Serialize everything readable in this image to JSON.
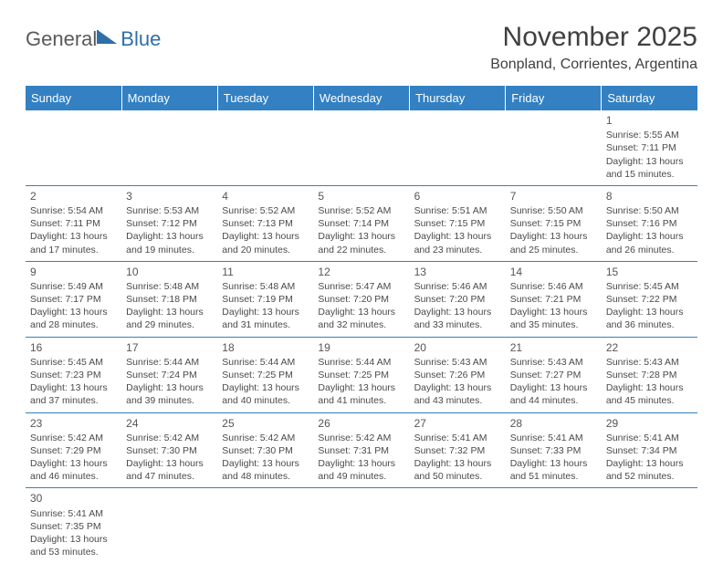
{
  "header": {
    "logo_text1": "General",
    "logo_text2": "Blue",
    "title": "November 2025",
    "subtitle": "Bonpland, Corrientes, Argentina"
  },
  "colors": {
    "header_bg": "#3380c2",
    "header_fg": "#ffffff",
    "border": "#3380c2",
    "text": "#4a4a4a",
    "logo_gray": "#5a5a5a",
    "logo_blue": "#2f6fa8"
  },
  "day_headers": [
    "Sunday",
    "Monday",
    "Tuesday",
    "Wednesday",
    "Thursday",
    "Friday",
    "Saturday"
  ],
  "weeks": [
    [
      null,
      null,
      null,
      null,
      null,
      null,
      {
        "n": "1",
        "sr": "Sunrise: 5:55 AM",
        "ss": "Sunset: 7:11 PM",
        "d1": "Daylight: 13 hours",
        "d2": "and 15 minutes."
      }
    ],
    [
      {
        "n": "2",
        "sr": "Sunrise: 5:54 AM",
        "ss": "Sunset: 7:11 PM",
        "d1": "Daylight: 13 hours",
        "d2": "and 17 minutes."
      },
      {
        "n": "3",
        "sr": "Sunrise: 5:53 AM",
        "ss": "Sunset: 7:12 PM",
        "d1": "Daylight: 13 hours",
        "d2": "and 19 minutes."
      },
      {
        "n": "4",
        "sr": "Sunrise: 5:52 AM",
        "ss": "Sunset: 7:13 PM",
        "d1": "Daylight: 13 hours",
        "d2": "and 20 minutes."
      },
      {
        "n": "5",
        "sr": "Sunrise: 5:52 AM",
        "ss": "Sunset: 7:14 PM",
        "d1": "Daylight: 13 hours",
        "d2": "and 22 minutes."
      },
      {
        "n": "6",
        "sr": "Sunrise: 5:51 AM",
        "ss": "Sunset: 7:15 PM",
        "d1": "Daylight: 13 hours",
        "d2": "and 23 minutes."
      },
      {
        "n": "7",
        "sr": "Sunrise: 5:50 AM",
        "ss": "Sunset: 7:15 PM",
        "d1": "Daylight: 13 hours",
        "d2": "and 25 minutes."
      },
      {
        "n": "8",
        "sr": "Sunrise: 5:50 AM",
        "ss": "Sunset: 7:16 PM",
        "d1": "Daylight: 13 hours",
        "d2": "and 26 minutes."
      }
    ],
    [
      {
        "n": "9",
        "sr": "Sunrise: 5:49 AM",
        "ss": "Sunset: 7:17 PM",
        "d1": "Daylight: 13 hours",
        "d2": "and 28 minutes."
      },
      {
        "n": "10",
        "sr": "Sunrise: 5:48 AM",
        "ss": "Sunset: 7:18 PM",
        "d1": "Daylight: 13 hours",
        "d2": "and 29 minutes."
      },
      {
        "n": "11",
        "sr": "Sunrise: 5:48 AM",
        "ss": "Sunset: 7:19 PM",
        "d1": "Daylight: 13 hours",
        "d2": "and 31 minutes."
      },
      {
        "n": "12",
        "sr": "Sunrise: 5:47 AM",
        "ss": "Sunset: 7:20 PM",
        "d1": "Daylight: 13 hours",
        "d2": "and 32 minutes."
      },
      {
        "n": "13",
        "sr": "Sunrise: 5:46 AM",
        "ss": "Sunset: 7:20 PM",
        "d1": "Daylight: 13 hours",
        "d2": "and 33 minutes."
      },
      {
        "n": "14",
        "sr": "Sunrise: 5:46 AM",
        "ss": "Sunset: 7:21 PM",
        "d1": "Daylight: 13 hours",
        "d2": "and 35 minutes."
      },
      {
        "n": "15",
        "sr": "Sunrise: 5:45 AM",
        "ss": "Sunset: 7:22 PM",
        "d1": "Daylight: 13 hours",
        "d2": "and 36 minutes."
      }
    ],
    [
      {
        "n": "16",
        "sr": "Sunrise: 5:45 AM",
        "ss": "Sunset: 7:23 PM",
        "d1": "Daylight: 13 hours",
        "d2": "and 37 minutes."
      },
      {
        "n": "17",
        "sr": "Sunrise: 5:44 AM",
        "ss": "Sunset: 7:24 PM",
        "d1": "Daylight: 13 hours",
        "d2": "and 39 minutes."
      },
      {
        "n": "18",
        "sr": "Sunrise: 5:44 AM",
        "ss": "Sunset: 7:25 PM",
        "d1": "Daylight: 13 hours",
        "d2": "and 40 minutes."
      },
      {
        "n": "19",
        "sr": "Sunrise: 5:44 AM",
        "ss": "Sunset: 7:25 PM",
        "d1": "Daylight: 13 hours",
        "d2": "and 41 minutes."
      },
      {
        "n": "20",
        "sr": "Sunrise: 5:43 AM",
        "ss": "Sunset: 7:26 PM",
        "d1": "Daylight: 13 hours",
        "d2": "and 43 minutes."
      },
      {
        "n": "21",
        "sr": "Sunrise: 5:43 AM",
        "ss": "Sunset: 7:27 PM",
        "d1": "Daylight: 13 hours",
        "d2": "and 44 minutes."
      },
      {
        "n": "22",
        "sr": "Sunrise: 5:43 AM",
        "ss": "Sunset: 7:28 PM",
        "d1": "Daylight: 13 hours",
        "d2": "and 45 minutes."
      }
    ],
    [
      {
        "n": "23",
        "sr": "Sunrise: 5:42 AM",
        "ss": "Sunset: 7:29 PM",
        "d1": "Daylight: 13 hours",
        "d2": "and 46 minutes."
      },
      {
        "n": "24",
        "sr": "Sunrise: 5:42 AM",
        "ss": "Sunset: 7:30 PM",
        "d1": "Daylight: 13 hours",
        "d2": "and 47 minutes."
      },
      {
        "n": "25",
        "sr": "Sunrise: 5:42 AM",
        "ss": "Sunset: 7:30 PM",
        "d1": "Daylight: 13 hours",
        "d2": "and 48 minutes."
      },
      {
        "n": "26",
        "sr": "Sunrise: 5:42 AM",
        "ss": "Sunset: 7:31 PM",
        "d1": "Daylight: 13 hours",
        "d2": "and 49 minutes."
      },
      {
        "n": "27",
        "sr": "Sunrise: 5:41 AM",
        "ss": "Sunset: 7:32 PM",
        "d1": "Daylight: 13 hours",
        "d2": "and 50 minutes."
      },
      {
        "n": "28",
        "sr": "Sunrise: 5:41 AM",
        "ss": "Sunset: 7:33 PM",
        "d1": "Daylight: 13 hours",
        "d2": "and 51 minutes."
      },
      {
        "n": "29",
        "sr": "Sunrise: 5:41 AM",
        "ss": "Sunset: 7:34 PM",
        "d1": "Daylight: 13 hours",
        "d2": "and 52 minutes."
      }
    ],
    [
      {
        "n": "30",
        "sr": "Sunrise: 5:41 AM",
        "ss": "Sunset: 7:35 PM",
        "d1": "Daylight: 13 hours",
        "d2": "and 53 minutes."
      },
      null,
      null,
      null,
      null,
      null,
      null
    ]
  ]
}
